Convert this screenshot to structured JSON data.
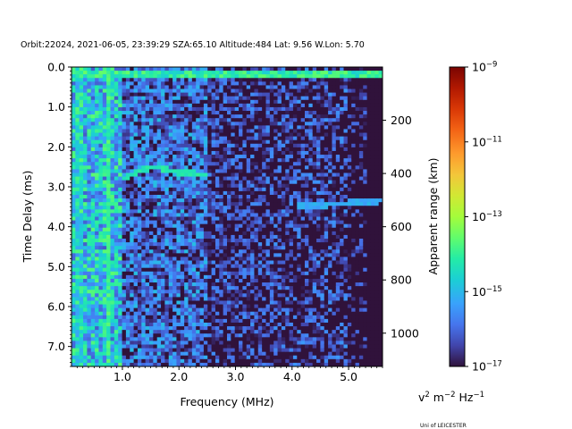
{
  "chart_data": {
    "type": "heatmap",
    "title": "Orbit:22024, 2021-06-05, 23:39:29 SZA:65.10 Altitude:484 Lat: 9.56 W.Lon: 5.70",
    "xlabel": "Frequency (MHz)",
    "ylabel": "Time Delay (ms)",
    "y2label": "Apparent range (km)",
    "xlim": [
      0.1,
      5.6
    ],
    "ylim": [
      7.5,
      0.0
    ],
    "x_ticks": [
      1.0,
      2.0,
      3.0,
      4.0,
      5.0
    ],
    "x_tick_labels": [
      "1.0",
      "2.0",
      "3.0",
      "4.0",
      "5.0"
    ],
    "y_ticks": [
      0.0,
      1.0,
      2.0,
      3.0,
      4.0,
      5.0,
      6.0,
      7.0
    ],
    "y_tick_labels": [
      "0.0",
      "1.0",
      "2.0",
      "3.0",
      "4.0",
      "5.0",
      "6.0",
      "7.0"
    ],
    "y2_ticks_km": [
      200,
      400,
      600,
      800,
      1000
    ],
    "y2_tick_labels": [
      "200",
      "400",
      "600",
      "800",
      "1000"
    ],
    "km_per_ms": 150,
    "colorbar": {
      "label_base": "v",
      "label_rest": " m",
      "label_tail": " Hz",
      "sup1": "2",
      "sup2": "−2",
      "sup3": "−1",
      "scale": "log",
      "range": [
        1e-17,
        1e-09
      ],
      "ticks": [
        {
          "value": 1e-09,
          "base": "10",
          "exp": "−9"
        },
        {
          "value": 1e-11,
          "base": "10",
          "exp": "−11"
        },
        {
          "value": 1e-13,
          "base": "10",
          "exp": "−13"
        },
        {
          "value": 1e-15,
          "base": "10",
          "exp": "−15"
        },
        {
          "value": 1e-17,
          "base": "10",
          "exp": "−17"
        }
      ]
    },
    "features": [
      {
        "kind": "horizontal-band",
        "delay_ms": 0.2,
        "freq_range_mhz": [
          0.1,
          5.6
        ],
        "log10_level": -13.5
      },
      {
        "kind": "vertical-band",
        "freq_mhz": 0.25,
        "delay_range_ms": [
          0.0,
          7.5
        ],
        "log10_level": -14.5
      },
      {
        "kind": "vertical-band",
        "freq_mhz": 0.75,
        "delay_range_ms": [
          0.0,
          7.5
        ],
        "log10_level": -13.5
      },
      {
        "kind": "echo-trace",
        "points": [
          [
            1.0,
            2.8
          ],
          [
            1.3,
            2.6
          ],
          [
            1.6,
            2.5
          ],
          [
            2.0,
            2.65
          ],
          [
            2.5,
            2.7
          ]
        ],
        "log10_level": -14.0
      },
      {
        "kind": "echo-trace",
        "points": [
          [
            4.1,
            3.45
          ],
          [
            4.6,
            3.45
          ],
          [
            5.1,
            3.4
          ],
          [
            5.6,
            3.35
          ]
        ],
        "log10_level": -15.0
      }
    ]
  },
  "footer": {
    "credit": "Uni of LEICESTER"
  }
}
